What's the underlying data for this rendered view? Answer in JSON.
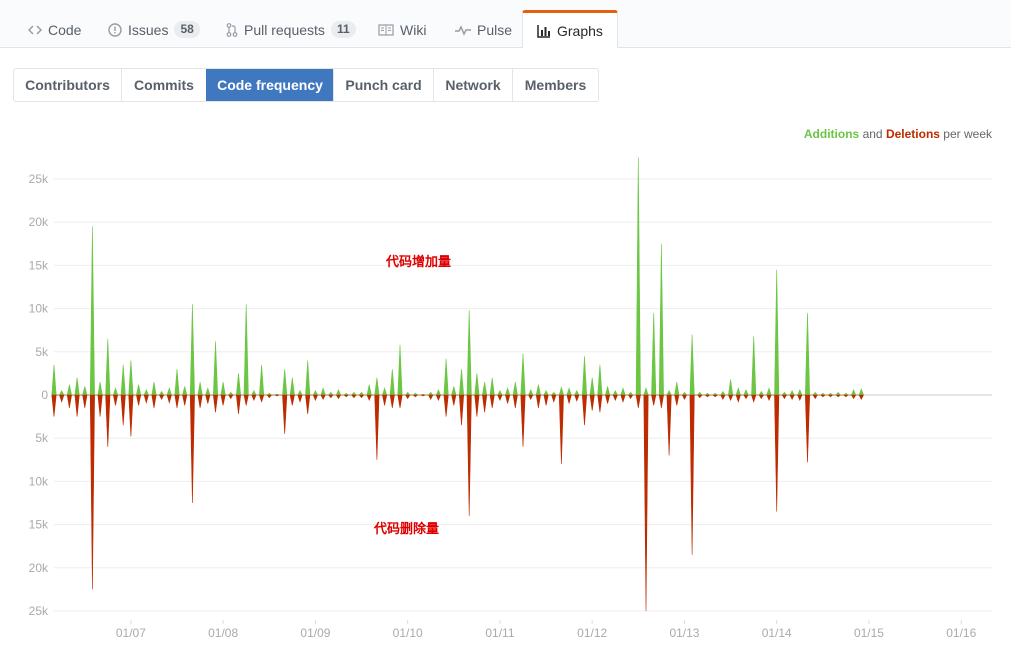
{
  "reponav": {
    "items": [
      {
        "label": "Code",
        "icon": "code-icon"
      },
      {
        "label": "Issues",
        "counter": "58",
        "icon": "issue-icon"
      },
      {
        "label": "Pull requests",
        "counter": "11",
        "icon": "pull-request-icon"
      },
      {
        "label": "Wiki",
        "icon": "book-icon"
      },
      {
        "label": "Pulse",
        "icon": "pulse-icon"
      },
      {
        "label": "Graphs",
        "icon": "graph-icon",
        "selected": true
      }
    ]
  },
  "subnav": {
    "items": [
      "Contributors",
      "Commits",
      "Code frequency",
      "Punch card",
      "Network",
      "Members"
    ],
    "selected": "Code frequency"
  },
  "legend": {
    "additions": "Additions",
    "and": "and",
    "deletions": "Deletions",
    "suffix": "per week"
  },
  "annotations": {
    "additions_note": "代码增加量",
    "deletions_note": "代码删除量"
  },
  "colors": {
    "additions": "#6cc644",
    "deletions": "#bd2c00",
    "accent": "#e36209",
    "selected_tab": "#4078c0"
  },
  "chart_data": {
    "type": "area",
    "title": "",
    "series": [
      {
        "name": "Additions",
        "color": "#6cc644"
      },
      {
        "name": "Deletions",
        "color": "#bd2c00"
      }
    ],
    "x_start": "2006-03",
    "x_end": "2016-05",
    "x_tick_labels": [
      "01/07",
      "01/08",
      "01/09",
      "01/10",
      "01/11",
      "01/12",
      "01/13",
      "01/14",
      "01/15",
      "01/16"
    ],
    "y_tick_labels": [
      "25k",
      "20k",
      "15k",
      "10k",
      "5k",
      "0",
      "5k",
      "10k",
      "15k",
      "20k",
      "25k"
    ],
    "ylim": [
      -25000,
      25000
    ],
    "grid": true,
    "legend_position": "top-right",
    "additions": [
      [
        "2006-03",
        3500
      ],
      [
        "2006-04",
        500
      ],
      [
        "2006-05",
        1200
      ],
      [
        "2006-06",
        2000
      ],
      [
        "2006-07",
        1000
      ],
      [
        "2006-08",
        19500
      ],
      [
        "2006-09",
        1500
      ],
      [
        "2006-10",
        6500
      ],
      [
        "2006-11",
        800
      ],
      [
        "2006-12",
        3500
      ],
      [
        "2007-01",
        4000
      ],
      [
        "2007-02",
        1200
      ],
      [
        "2007-03",
        600
      ],
      [
        "2007-04",
        1500
      ],
      [
        "2007-05",
        400
      ],
      [
        "2007-06",
        800
      ],
      [
        "2007-07",
        3000
      ],
      [
        "2007-08",
        1000
      ],
      [
        "2007-09",
        10500
      ],
      [
        "2007-10",
        1500
      ],
      [
        "2007-11",
        800
      ],
      [
        "2007-12",
        6200
      ],
      [
        "2008-01",
        1500
      ],
      [
        "2008-02",
        300
      ],
      [
        "2008-03",
        2500
      ],
      [
        "2008-04",
        10500
      ],
      [
        "2008-05",
        500
      ],
      [
        "2008-06",
        3500
      ],
      [
        "2008-07",
        200
      ],
      [
        "2008-08",
        100
      ],
      [
        "2008-09",
        3000
      ],
      [
        "2008-10",
        2000
      ],
      [
        "2008-11",
        500
      ],
      [
        "2008-12",
        4000
      ],
      [
        "2009-01",
        500
      ],
      [
        "2009-02",
        800
      ],
      [
        "2009-03",
        300
      ],
      [
        "2009-04",
        600
      ],
      [
        "2009-05",
        200
      ],
      [
        "2009-06",
        300
      ],
      [
        "2009-07",
        300
      ],
      [
        "2009-08",
        1200
      ],
      [
        "2009-09",
        2000
      ],
      [
        "2009-10",
        800
      ],
      [
        "2009-11",
        3000
      ],
      [
        "2009-12",
        5800
      ],
      [
        "2010-01",
        300
      ],
      [
        "2010-02",
        200
      ],
      [
        "2010-03",
        100
      ],
      [
        "2010-04",
        300
      ],
      [
        "2010-05",
        600
      ],
      [
        "2010-06",
        4200
      ],
      [
        "2010-07",
        1000
      ],
      [
        "2010-08",
        3000
      ],
      [
        "2010-09",
        9800
      ],
      [
        "2010-10",
        2500
      ],
      [
        "2010-11",
        1500
      ],
      [
        "2010-12",
        2000
      ],
      [
        "2011-01",
        500
      ],
      [
        "2011-02",
        800
      ],
      [
        "2011-03",
        1500
      ],
      [
        "2011-04",
        4800
      ],
      [
        "2011-05",
        600
      ],
      [
        "2011-06",
        1200
      ],
      [
        "2011-07",
        500
      ],
      [
        "2011-08",
        300
      ],
      [
        "2011-09",
        900
      ],
      [
        "2011-10",
        800
      ],
      [
        "2011-11",
        500
      ],
      [
        "2011-12",
        4500
      ],
      [
        "2012-01",
        2000
      ],
      [
        "2012-02",
        3500
      ],
      [
        "2012-03",
        1000
      ],
      [
        "2012-04",
        500
      ],
      [
        "2012-05",
        800
      ],
      [
        "2012-06",
        300
      ],
      [
        "2012-07",
        27500
      ],
      [
        "2012-08",
        800
      ],
      [
        "2012-09",
        9500
      ],
      [
        "2012-10",
        17500
      ],
      [
        "2012-11",
        500
      ],
      [
        "2012-12",
        1500
      ],
      [
        "2013-01",
        300
      ],
      [
        "2013-02",
        7000
      ],
      [
        "2013-03",
        300
      ],
      [
        "2013-04",
        200
      ],
      [
        "2013-05",
        200
      ],
      [
        "2013-06",
        400
      ],
      [
        "2013-07",
        1800
      ],
      [
        "2013-08",
        800
      ],
      [
        "2013-09",
        600
      ],
      [
        "2013-10",
        6800
      ],
      [
        "2013-11",
        400
      ],
      [
        "2013-12",
        800
      ],
      [
        "2014-01",
        14500
      ],
      [
        "2014-02",
        300
      ],
      [
        "2014-03",
        500
      ],
      [
        "2014-04",
        600
      ],
      [
        "2014-05",
        9500
      ],
      [
        "2014-06",
        300
      ],
      [
        "2014-07",
        200
      ],
      [
        "2014-08",
        200
      ],
      [
        "2014-09",
        300
      ],
      [
        "2014-10",
        200
      ],
      [
        "2014-11",
        600
      ],
      [
        "2014-12",
        700
      ]
    ],
    "deletions": [
      [
        "2006-03",
        -2500
      ],
      [
        "2006-04",
        -800
      ],
      [
        "2006-05",
        -1500
      ],
      [
        "2006-06",
        -2500
      ],
      [
        "2006-07",
        -1500
      ],
      [
        "2006-08",
        -22500
      ],
      [
        "2006-09",
        -2500
      ],
      [
        "2006-10",
        -6000
      ],
      [
        "2006-11",
        -1200
      ],
      [
        "2006-12",
        -3500
      ],
      [
        "2007-01",
        -4800
      ],
      [
        "2007-02",
        -1200
      ],
      [
        "2007-03",
        -900
      ],
      [
        "2007-04",
        -1500
      ],
      [
        "2007-05",
        -500
      ],
      [
        "2007-06",
        -900
      ],
      [
        "2007-07",
        -1500
      ],
      [
        "2007-08",
        -1200
      ],
      [
        "2007-09",
        -12500
      ],
      [
        "2007-10",
        -1500
      ],
      [
        "2007-11",
        -1000
      ],
      [
        "2007-12",
        -2000
      ],
      [
        "2008-01",
        -1200
      ],
      [
        "2008-02",
        -400
      ],
      [
        "2008-03",
        -2200
      ],
      [
        "2008-04",
        -1200
      ],
      [
        "2008-05",
        -600
      ],
      [
        "2008-06",
        -800
      ],
      [
        "2008-07",
        -300
      ],
      [
        "2008-08",
        -100
      ],
      [
        "2008-09",
        -4500
      ],
      [
        "2008-10",
        -1200
      ],
      [
        "2008-11",
        -800
      ],
      [
        "2008-12",
        -2200
      ],
      [
        "2009-01",
        -600
      ],
      [
        "2009-02",
        -500
      ],
      [
        "2009-03",
        -300
      ],
      [
        "2009-04",
        -400
      ],
      [
        "2009-05",
        -200
      ],
      [
        "2009-06",
        -300
      ],
      [
        "2009-07",
        -300
      ],
      [
        "2009-08",
        -600
      ],
      [
        "2009-09",
        -7500
      ],
      [
        "2009-10",
        -1200
      ],
      [
        "2009-11",
        -1500
      ],
      [
        "2009-12",
        -1500
      ],
      [
        "2010-01",
        -400
      ],
      [
        "2010-02",
        -200
      ],
      [
        "2010-03",
        -100
      ],
      [
        "2010-04",
        -500
      ],
      [
        "2010-05",
        -600
      ],
      [
        "2010-06",
        -2500
      ],
      [
        "2010-07",
        -1200
      ],
      [
        "2010-08",
        -3500
      ],
      [
        "2010-09",
        -14000
      ],
      [
        "2010-10",
        -2500
      ],
      [
        "2010-11",
        -2000
      ],
      [
        "2010-12",
        -1500
      ],
      [
        "2011-01",
        -600
      ],
      [
        "2011-02",
        -1000
      ],
      [
        "2011-03",
        -1500
      ],
      [
        "2011-04",
        -6000
      ],
      [
        "2011-05",
        -500
      ],
      [
        "2011-06",
        -1500
      ],
      [
        "2011-07",
        -1200
      ],
      [
        "2011-08",
        -800
      ],
      [
        "2011-09",
        -8000
      ],
      [
        "2011-10",
        -1000
      ],
      [
        "2011-11",
        -700
      ],
      [
        "2011-12",
        -3500
      ],
      [
        "2012-01",
        -1800
      ],
      [
        "2012-02",
        -2000
      ],
      [
        "2012-03",
        -1000
      ],
      [
        "2012-04",
        -600
      ],
      [
        "2012-05",
        -800
      ],
      [
        "2012-06",
        -400
      ],
      [
        "2012-07",
        -1500
      ],
      [
        "2012-08",
        -25000
      ],
      [
        "2012-09",
        -1200
      ],
      [
        "2012-10",
        -1500
      ],
      [
        "2012-11",
        -7000
      ],
      [
        "2012-12",
        -1200
      ],
      [
        "2013-01",
        -500
      ],
      [
        "2013-02",
        -18500
      ],
      [
        "2013-03",
        -300
      ],
      [
        "2013-04",
        -200
      ],
      [
        "2013-05",
        -200
      ],
      [
        "2013-06",
        -500
      ],
      [
        "2013-07",
        -600
      ],
      [
        "2013-08",
        -800
      ],
      [
        "2013-09",
        -400
      ],
      [
        "2013-10",
        -800
      ],
      [
        "2013-11",
        -400
      ],
      [
        "2013-12",
        -600
      ],
      [
        "2014-01",
        -13500
      ],
      [
        "2014-02",
        -400
      ],
      [
        "2014-03",
        -500
      ],
      [
        "2014-04",
        -600
      ],
      [
        "2014-05",
        -7800
      ],
      [
        "2014-06",
        -400
      ],
      [
        "2014-07",
        -200
      ],
      [
        "2014-08",
        -200
      ],
      [
        "2014-09",
        -200
      ],
      [
        "2014-10",
        -200
      ],
      [
        "2014-11",
        -400
      ],
      [
        "2014-12",
        -500
      ]
    ]
  }
}
